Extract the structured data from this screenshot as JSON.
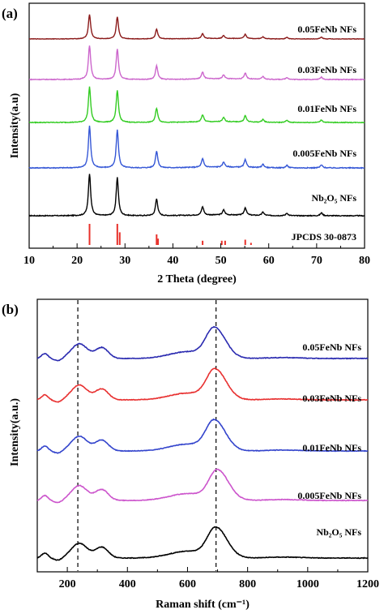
{
  "chart_data": [
    {
      "type": "line",
      "panel_label": "(a)",
      "xlabel": "2 Theta (degree)",
      "ylabel": "Intensity(a.u)",
      "xlim": [
        10,
        80
      ],
      "x_ticks": [
        10,
        20,
        30,
        40,
        50,
        60,
        70,
        80
      ],
      "grid": false,
      "stacked": true,
      "peaks": [
        22.6,
        28.4,
        36.6,
        46.2,
        50.6,
        55.1,
        58.8,
        63.8,
        71.0
      ],
      "peak_heights": [
        1.0,
        0.9,
        0.4,
        0.2,
        0.12,
        0.18,
        0.08,
        0.06,
        0.07
      ],
      "series": [
        {
          "name": "Nb₂O₅ NFs",
          "color": "#000000"
        },
        {
          "name": "0.005FeNb NFs",
          "color": "#3557d6"
        },
        {
          "name": "0.01FeNb NFs",
          "color": "#33cc22"
        },
        {
          "name": "0.03FeNb NFs",
          "color": "#cc66cc"
        },
        {
          "name": "0.05FeNb NFs",
          "color": "#8b1a1a"
        }
      ],
      "reference": {
        "name": "JPCDS 30-0873",
        "color": "#e8302a",
        "x": [
          22.6,
          28.4,
          28.9,
          36.6,
          36.9,
          46.2,
          50.2,
          50.9,
          55.1,
          56.3
        ],
        "intensity": [
          1.0,
          1.0,
          0.6,
          0.5,
          0.3,
          0.2,
          0.2,
          0.2,
          0.25,
          0.1
        ]
      }
    },
    {
      "type": "line",
      "panel_label": "(b)",
      "xlabel": "Raman shift (cm⁻¹)",
      "ylabel": "Intensity(a.u.)",
      "xlim": [
        100,
        1200
      ],
      "x_ticks": [
        200,
        400,
        600,
        800,
        1000,
        1200
      ],
      "grid": false,
      "stacked": true,
      "reference_lines_x": [
        235,
        695
      ],
      "series": [
        {
          "name": "Nb₂O₅ NFs",
          "color": "#000000",
          "main_peak": 695
        },
        {
          "name": "0.005FeNb NFs",
          "color": "#cc55cc",
          "main_peak": 700
        },
        {
          "name": "0.01FeNb NFs",
          "color": "#3344cc",
          "main_peak": 690
        },
        {
          "name": "0.03FeNb NFs",
          "color": "#e83030",
          "main_peak": 692
        },
        {
          "name": "0.05FeNb NFs",
          "color": "#2a2ab0",
          "main_peak": 690
        }
      ]
    }
  ]
}
